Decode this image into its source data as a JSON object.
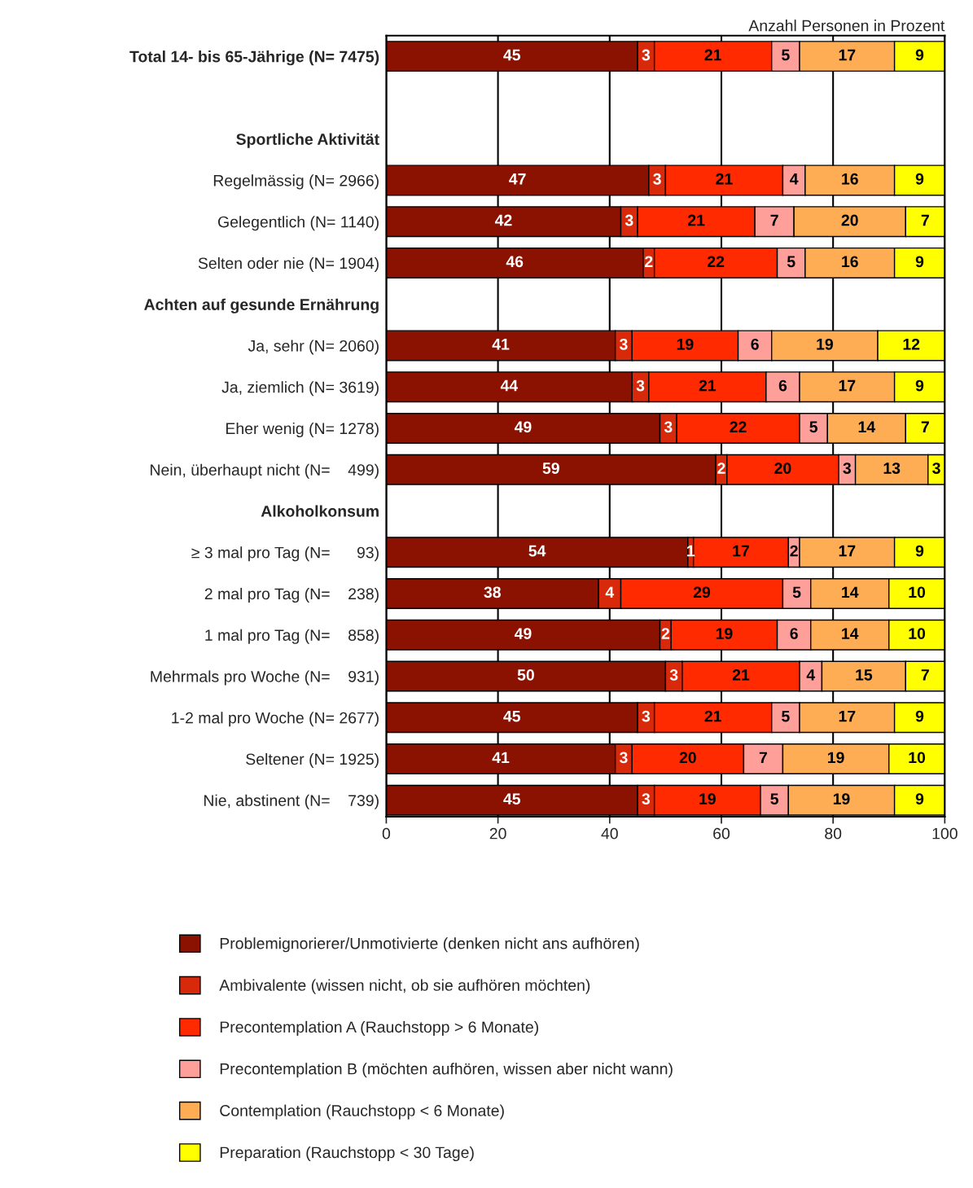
{
  "chart_data": {
    "type": "bar",
    "orientation": "horizontal",
    "stacked": true,
    "xlabel": "Anzahl Personen in Prozent",
    "categories": [
      "Total 14- bis 65-Jährige (N= 7475)",
      null,
      "Sportliche Aktivität",
      "Regelmässig (N= 2966)",
      "Gelegentlich (N= 1140)",
      "Selten oder nie (N= 1904)",
      "Achten auf gesunde Ernährung",
      "Ja, sehr (N= 2060)",
      "Ja, ziemlich (N= 3619)",
      "Eher wenig (N= 1278)",
      "Nein, überhaupt nicht (N=    499)",
      "Alkoholkonsum",
      "≥ 3 mal pro Tag (N=      93)",
      "2 mal pro Tag (N=    238)",
      "1 mal pro Tag (N=    858)",
      "Mehrmals pro Woche (N=    931)",
      "1-2 mal pro Woche (N= 2677)",
      "Seltener (N= 1925)",
      "Nie, abstinent (N=    739)"
    ],
    "series": [
      {
        "name": "Problemignorierer/Unmotivierte (denken nicht ans aufhören)",
        "color": "#8b1100",
        "values": [
          45,
          null,
          null,
          47,
          42,
          46,
          null,
          41,
          44,
          49,
          59,
          null,
          54,
          38,
          49,
          50,
          45,
          41,
          45
        ]
      },
      {
        "name": "Ambivalente (wissen nicht, ob sie aufhören möchten)",
        "color": "#d9290b",
        "values": [
          3,
          null,
          null,
          3,
          3,
          2,
          null,
          3,
          3,
          3,
          2,
          null,
          1,
          4,
          2,
          3,
          3,
          3,
          3
        ]
      },
      {
        "name": "Precontemplation A (Rauchstopp > 6 Monate)",
        "color": "#ff2a00",
        "values": [
          21,
          null,
          null,
          21,
          21,
          22,
          null,
          19,
          21,
          22,
          20,
          null,
          17,
          29,
          19,
          21,
          21,
          20,
          19
        ]
      },
      {
        "name": "Precontemplation B (möchten aufhören, wissen aber nicht wann)",
        "color": "#ff9f9a",
        "values": [
          5,
          null,
          null,
          4,
          7,
          5,
          null,
          6,
          6,
          5,
          3,
          null,
          2,
          5,
          6,
          4,
          5,
          7,
          5
        ]
      },
      {
        "name": "Contemplation (Rauchstopp < 6 Monate)",
        "color": "#ffad55",
        "values": [
          17,
          null,
          null,
          16,
          20,
          16,
          null,
          19,
          17,
          14,
          13,
          null,
          17,
          14,
          14,
          15,
          17,
          19,
          19
        ]
      },
      {
        "name": "Preparation (Rauchstopp < 30 Tage)",
        "color": "#ffff00",
        "values": [
          9,
          null,
          null,
          9,
          7,
          9,
          null,
          12,
          9,
          7,
          3,
          null,
          9,
          10,
          10,
          7,
          9,
          10,
          9
        ]
      }
    ],
    "xlim": [
      0,
      100
    ],
    "xticks": [
      0,
      20,
      40,
      60,
      80,
      100
    ],
    "grid": "x",
    "data_labels": true,
    "legend": "bottom"
  }
}
